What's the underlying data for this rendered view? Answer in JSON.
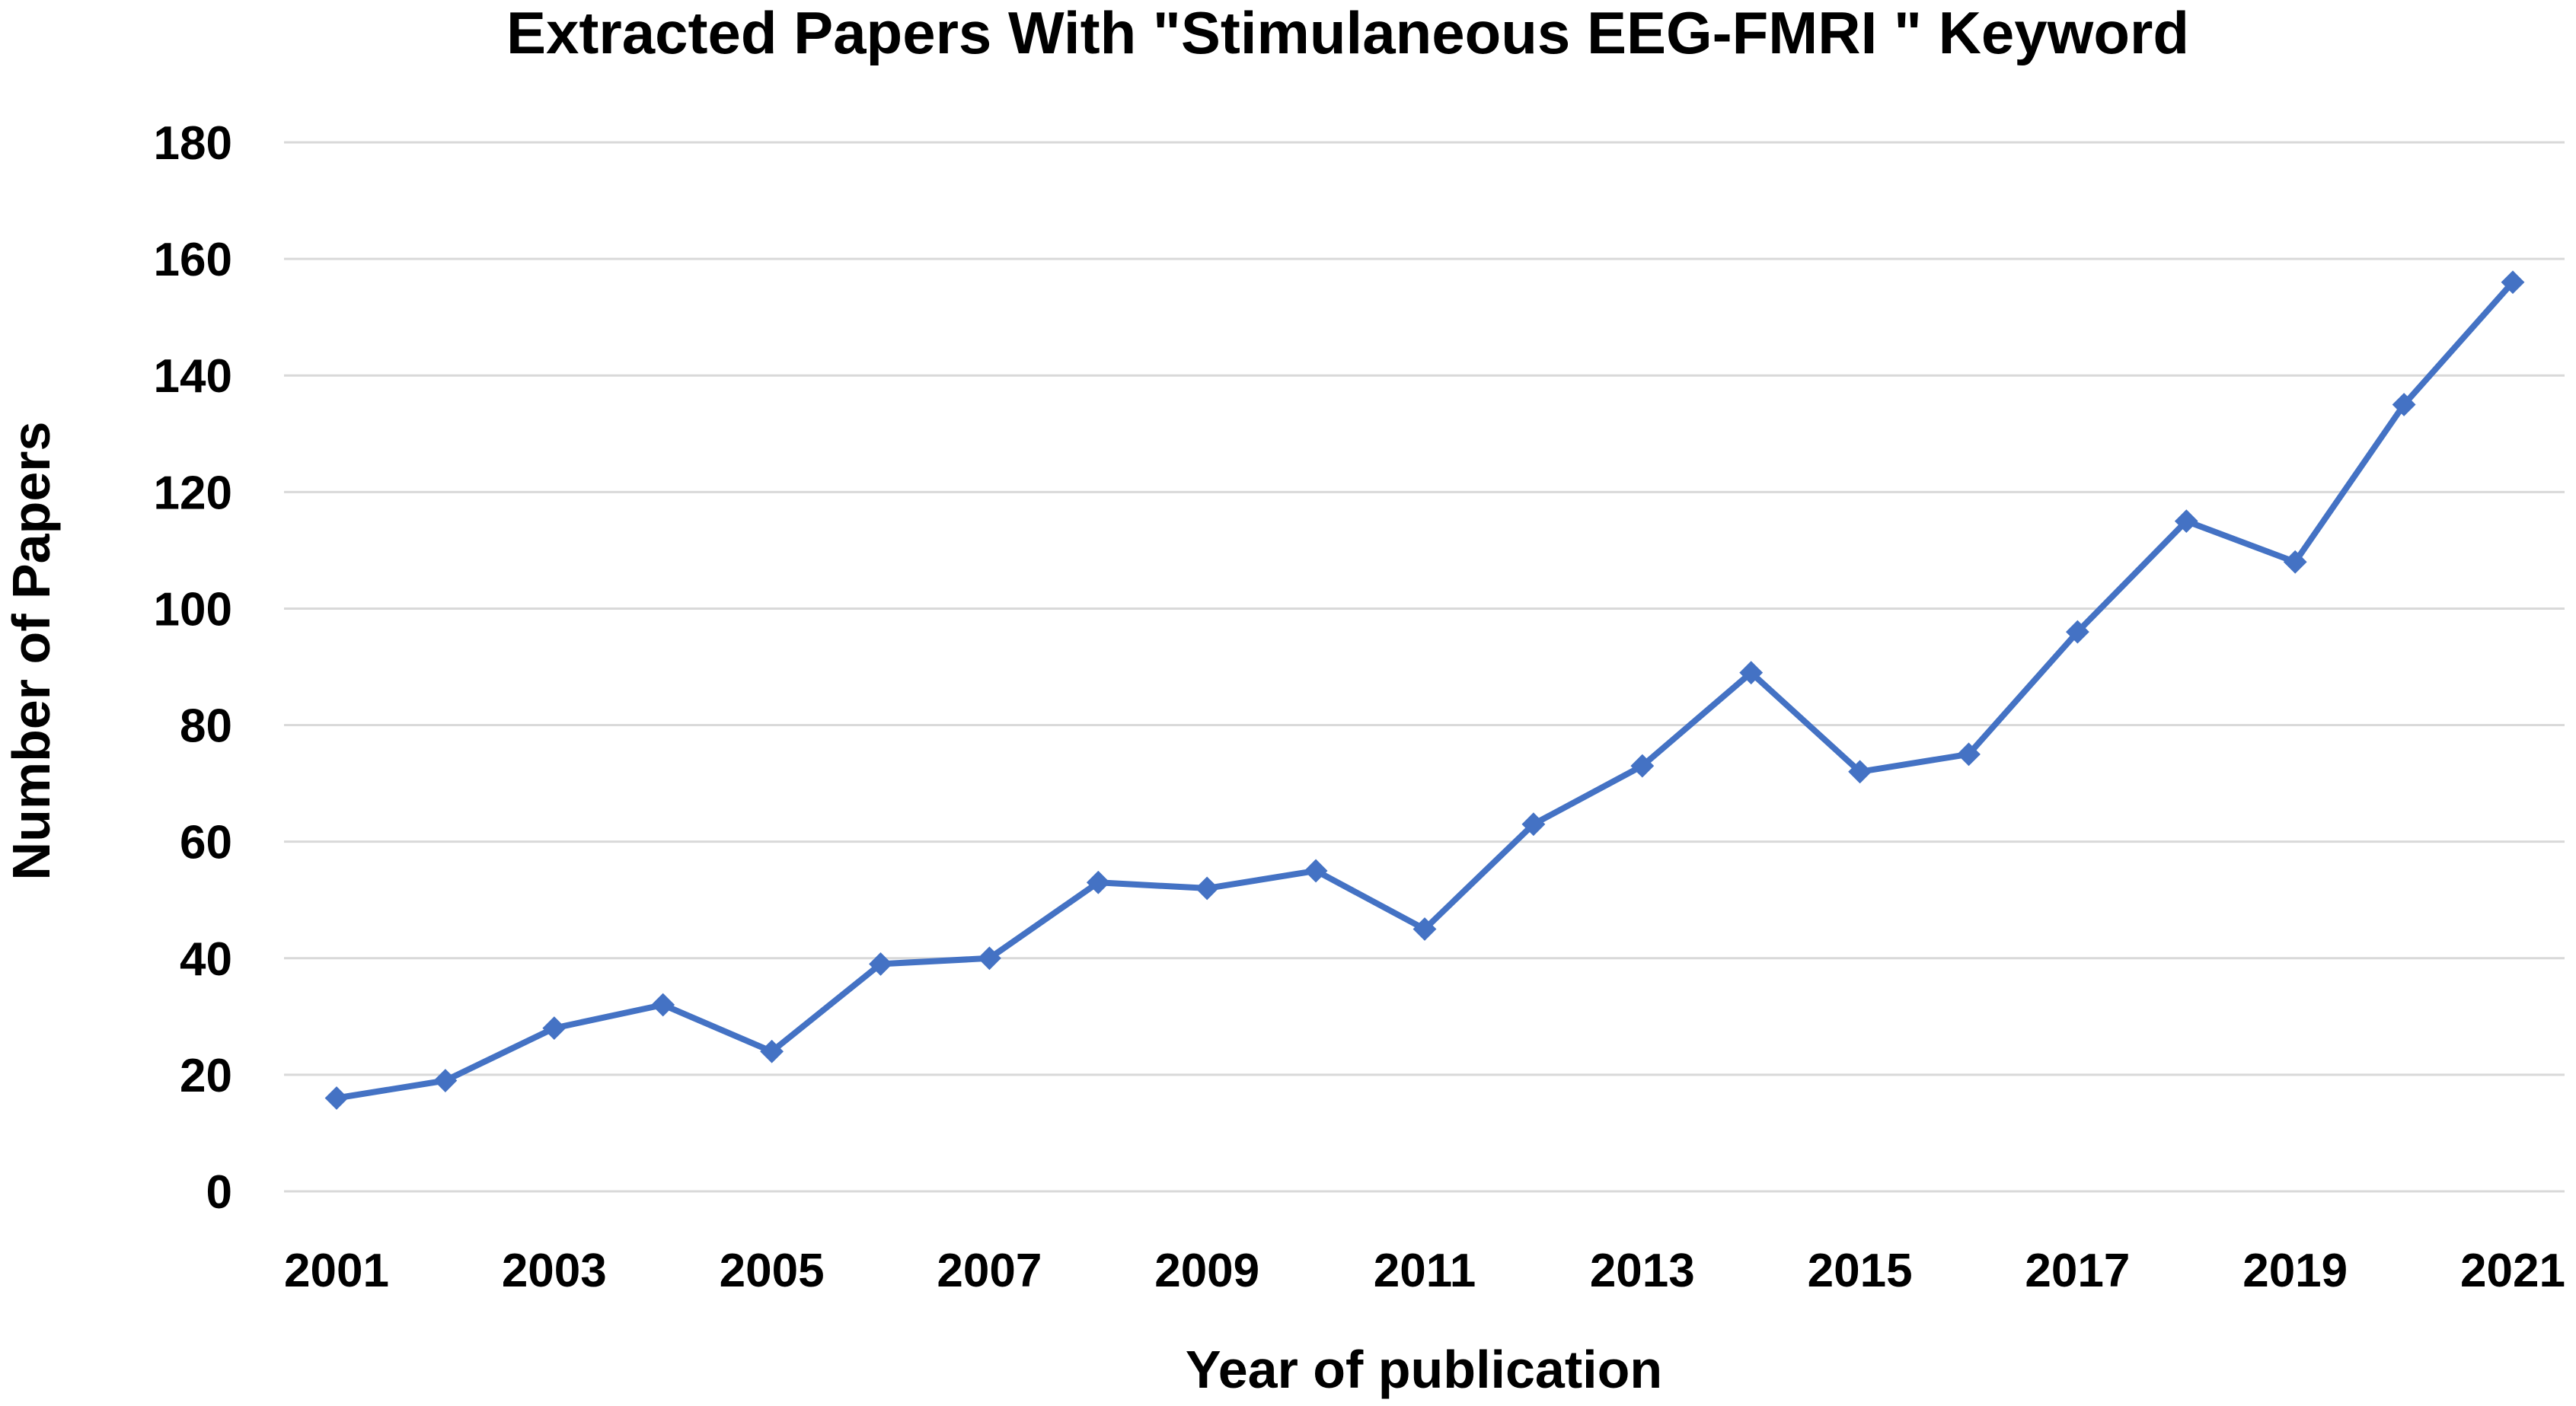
{
  "chart_data": {
    "type": "line",
    "title": "Extracted Papers With \"Stimulaneous EEG-FMRI \" Keyword",
    "xlabel": "Year of publication",
    "ylabel": "Number of Papers",
    "x": [
      2001,
      2002,
      2003,
      2004,
      2005,
      2006,
      2007,
      2008,
      2009,
      2010,
      2011,
      2012,
      2013,
      2014,
      2015,
      2016,
      2017,
      2018,
      2019,
      2020,
      2021
    ],
    "x_tick_labels": [
      "2001",
      "2003",
      "2005",
      "2007",
      "2009",
      "2011",
      "2013",
      "2015",
      "2017",
      "2019",
      "2021"
    ],
    "y_tick_labels": [
      "0",
      "20",
      "40",
      "60",
      "80",
      "100",
      "120",
      "140",
      "160",
      "180"
    ],
    "series": [
      {
        "values": [
          16,
          19,
          28,
          32,
          24,
          39,
          40,
          53,
          52,
          55,
          45,
          63,
          73,
          89,
          72,
          75,
          96,
          115,
          108,
          135,
          156
        ],
        "color": "#4472c4",
        "marker": "diamond"
      }
    ],
    "xlim": [
      2000.5,
      2021.5
    ],
    "ylim": [
      0,
      180
    ],
    "grid": "horizontal",
    "legend": "none"
  }
}
